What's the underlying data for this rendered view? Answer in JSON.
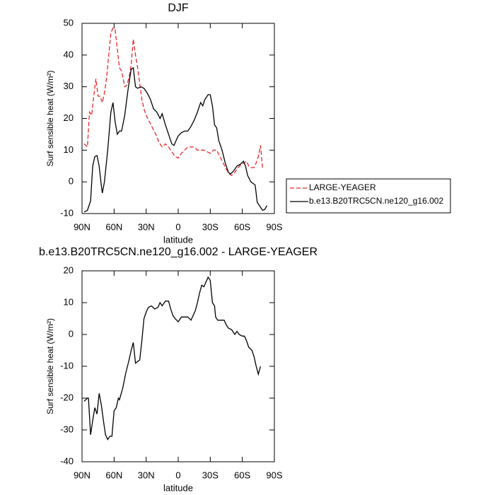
{
  "chart_data": [
    {
      "type": "line",
      "title": "DJF",
      "x_label": "latitude",
      "y_label": "Surf sensible heat (W/m²)",
      "xlim": [
        90,
        -90
      ],
      "ylim": [
        -10,
        50
      ],
      "xticks": [
        {
          "value": 90,
          "label": "90N"
        },
        {
          "value": 60,
          "label": "60N"
        },
        {
          "value": 30,
          "label": "30N"
        },
        0,
        {
          "value": -30,
          "label": "30S"
        },
        {
          "value": -60,
          "label": "60S"
        },
        {
          "value": -90,
          "label": "90S"
        }
      ],
      "yticks": [
        -10,
        0,
        10,
        20,
        30,
        40,
        50
      ],
      "legend": "lower right",
      "series": [
        {
          "name": "LARGE-YEAGER",
          "color": "#e8282b",
          "style": "dashed",
          "x": [
            88,
            85,
            83,
            81,
            79,
            77,
            75,
            73,
            71,
            69,
            67,
            65,
            63,
            61,
            59,
            57,
            55,
            53,
            50,
            48,
            46,
            44,
            42,
            40,
            38,
            36,
            34,
            32,
            30,
            27,
            24,
            21,
            18,
            15,
            12,
            9,
            6,
            3,
            0,
            -3,
            -6,
            -9,
            -12,
            -15,
            -18,
            -21,
            -24,
            -27,
            -30,
            -33,
            -36,
            -39,
            -42,
            -45,
            -48,
            -50,
            -53,
            -56,
            -59,
            -62,
            -64,
            -66,
            -68,
            -71,
            -73,
            -75,
            -77,
            -79
          ],
          "values": [
            12,
            11,
            22,
            21,
            27,
            32.5,
            27,
            27,
            25,
            28,
            33,
            40,
            47,
            48.5,
            48,
            42,
            36,
            35,
            30,
            30.5,
            33,
            37,
            45,
            40,
            36,
            31,
            26,
            23,
            21,
            19,
            17,
            15,
            12.5,
            11,
            12,
            11,
            9.5,
            8,
            7.5,
            9,
            10,
            11,
            11,
            11,
            10,
            10,
            10,
            9.5,
            9,
            10,
            10,
            8,
            6,
            4,
            2.5,
            2,
            3,
            4.5,
            5.5,
            6,
            6.5,
            5,
            4.5,
            4.5,
            6,
            8,
            11.5,
            4
          ]
        },
        {
          "name": "b.e13.B20TRC5CN.ne120_g16.002",
          "color": "#000000",
          "style": "solid",
          "x": [
            88,
            85,
            82,
            80,
            78,
            76,
            74,
            72,
            71,
            69,
            66,
            63,
            61,
            59,
            57,
            55,
            53,
            50,
            47,
            44,
            42,
            40,
            38,
            35,
            32,
            29,
            26,
            23,
            20,
            17,
            15,
            12,
            9,
            6,
            4,
            2,
            0,
            -3,
            -6,
            -9,
            -12,
            -15,
            -18,
            -21,
            -23,
            -25,
            -28,
            -30,
            -32,
            -34,
            -36,
            -38,
            -41,
            -44,
            -47,
            -49,
            -52,
            -55,
            -58,
            -61,
            -63,
            -65,
            -68,
            -70,
            -72,
            -74,
            -77,
            -79,
            -81,
            -83
          ],
          "values": [
            -9.5,
            -9,
            -6,
            5,
            8,
            8.3,
            5,
            -1,
            -3.5,
            0,
            10,
            22,
            25,
            19,
            15,
            16,
            16,
            21,
            29,
            35.5,
            36,
            30,
            29.5,
            30,
            29.5,
            28,
            26,
            23,
            22,
            20,
            21.5,
            18,
            15,
            12,
            11.5,
            13,
            14.5,
            15.5,
            16,
            16,
            17.5,
            19.5,
            22,
            25,
            24,
            26,
            27.5,
            27.5,
            24,
            18,
            17,
            13,
            10,
            6,
            3,
            2.5,
            3.5,
            5,
            5.5,
            6.5,
            5,
            2,
            0,
            -0.5,
            -1,
            -6.5,
            -8,
            -9,
            -8.7,
            -7.5
          ]
        }
      ]
    },
    {
      "type": "line",
      "title": "b.e13.B20TRC5CN.ne120_g16.002 - LARGE-YEAGER",
      "x_label": "latitude",
      "y_label": "Surf sensible heat (W/m²)",
      "xlim": [
        90,
        -90
      ],
      "ylim": [
        -40,
        20
      ],
      "xticks": [
        {
          "value": 90,
          "label": "90N"
        },
        {
          "value": 60,
          "label": "60N"
        },
        {
          "value": 30,
          "label": "30N"
        },
        0,
        {
          "value": -30,
          "label": "30S"
        },
        {
          "value": -60,
          "label": "60S"
        },
        {
          "value": -90,
          "label": "90S"
        }
      ],
      "yticks": [
        -40,
        -30,
        -20,
        -10,
        0,
        10,
        20
      ],
      "color": "#000000",
      "x": [
        88,
        85,
        84,
        82,
        80,
        78,
        76,
        74,
        72,
        70,
        68,
        66,
        64,
        62,
        60,
        58,
        56,
        55,
        52,
        49,
        46,
        44,
        42,
        40,
        38,
        36,
        34,
        32,
        30,
        28,
        25,
        22,
        19,
        17,
        15,
        12,
        9,
        7,
        5,
        3,
        0,
        -3,
        -6,
        -9,
        -12,
        -14,
        -16,
        -18,
        -20,
        -22,
        -24,
        -26,
        -28,
        -30,
        -32,
        -34,
        -35,
        -37,
        -40,
        -43,
        -45,
        -47,
        -50,
        -53,
        -55,
        -57,
        -60,
        -62,
        -64,
        -66,
        -69,
        -71,
        -73,
        -75,
        -77
      ],
      "values": [
        -21,
        -20,
        -20,
        -31.5,
        -27,
        -23,
        -25,
        -18.5,
        -22,
        -27,
        -31.5,
        -33,
        -32,
        -32,
        -24,
        -23,
        -20,
        -20.5,
        -17,
        -12,
        -8,
        -5,
        -2.5,
        -9,
        -8.5,
        -8,
        -2,
        5,
        7,
        8.5,
        9,
        8,
        8.5,
        10,
        9,
        10.5,
        10.5,
        8,
        6,
        5,
        4,
        5.5,
        5.5,
        5.5,
        4.5,
        6,
        7.5,
        10,
        13,
        15.5,
        15,
        16.5,
        18,
        17,
        10,
        9,
        5.5,
        4.5,
        4.5,
        4.5,
        3,
        2,
        1.5,
        0,
        1,
        0,
        -0.5,
        -0.5,
        -2,
        -4,
        -5,
        -7,
        -10,
        -12.5,
        -10
      ]
    }
  ]
}
